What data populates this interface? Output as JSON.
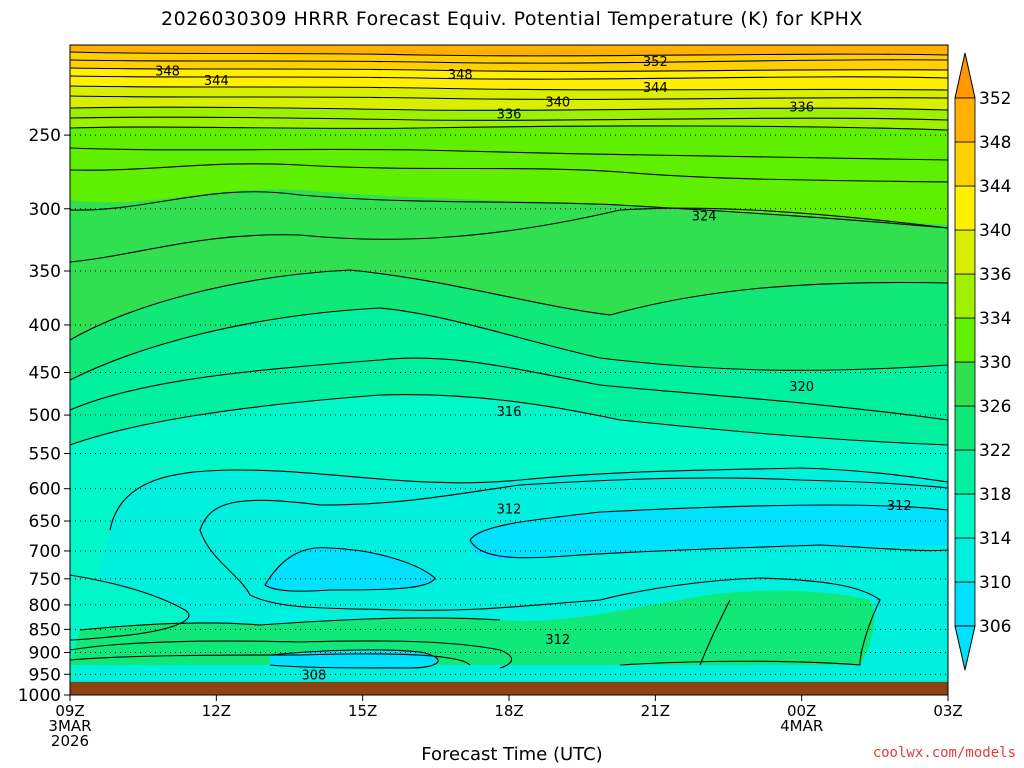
{
  "chart_data": {
    "type": "contour",
    "title": "2026030309 HRRR Forecast Equiv. Potential Temperature (K) for KPHX",
    "xlabel": "Forecast Time (UTC)",
    "ylabel": "",
    "x_ticks": [
      "09Z",
      "12Z",
      "15Z",
      "18Z",
      "21Z",
      "00Z",
      "03Z"
    ],
    "x_date_labels": [
      {
        "at": "09Z",
        "lines": [
          "3MAR",
          "2026"
        ]
      },
      {
        "at": "00Z",
        "lines": [
          "4MAR"
        ]
      }
    ],
    "y_ticks": [
      250,
      300,
      350,
      400,
      450,
      500,
      550,
      600,
      650,
      700,
      750,
      800,
      850,
      900,
      950,
      1000
    ],
    "y_scale": "log",
    "ylim": [
      1000,
      200
    ],
    "colorbar": {
      "levels": [
        306,
        310,
        314,
        318,
        322,
        326,
        330,
        334,
        336,
        340,
        344,
        348,
        352
      ],
      "colors": [
        "#00e0ff",
        "#00f0e0",
        "#00f8c8",
        "#00f0a0",
        "#10e878",
        "#30e050",
        "#60f000",
        "#a0f000",
        "#d8f000",
        "#fff000",
        "#ffd000",
        "#ffb000",
        "#ff9800"
      ],
      "extend": "both"
    },
    "contour_labels": [
      {
        "text": "348",
        "time": "11Z",
        "pressure": 213
      },
      {
        "text": "344",
        "time": "12Z",
        "pressure": 218
      },
      {
        "text": "348",
        "time": "17Z",
        "pressure": 215
      },
      {
        "text": "352",
        "time": "21Z",
        "pressure": 208
      },
      {
        "text": "344",
        "time": "21Z",
        "pressure": 222
      },
      {
        "text": "340",
        "time": "19Z",
        "pressure": 230
      },
      {
        "text": "336",
        "time": "18Z",
        "pressure": 237
      },
      {
        "text": "336",
        "time": "00Z",
        "pressure": 233
      },
      {
        "text": "324",
        "time": "22Z",
        "pressure": 305
      },
      {
        "text": "320",
        "time": "00Z",
        "pressure": 465
      },
      {
        "text": "316",
        "time": "18Z",
        "pressure": 495
      },
      {
        "text": "312",
        "time": "18Z",
        "pressure": 630
      },
      {
        "text": "312",
        "time": "02Z",
        "pressure": 625
      },
      {
        "text": "312",
        "time": "19Z",
        "pressure": 870
      },
      {
        "text": "308",
        "time": "14Z",
        "pressure": 950
      }
    ],
    "ground": {
      "color": "#8b4513",
      "pressure_top": 968
    },
    "grid": "dotted horizontal at y ticks"
  },
  "credit": "coolwx.com/models"
}
